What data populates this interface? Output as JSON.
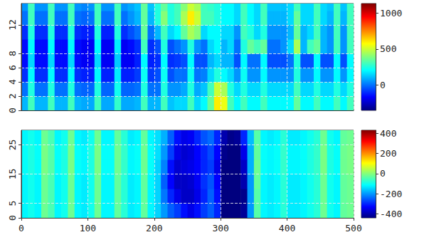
{
  "chart_data": [
    {
      "type": "heatmap",
      "x": [
        5,
        15,
        25,
        35,
        45,
        55,
        65,
        75,
        85,
        95,
        105,
        115,
        125,
        135,
        145,
        155,
        165,
        175,
        185,
        195,
        205,
        215,
        225,
        235,
        245,
        255,
        265,
        275,
        285,
        295,
        305,
        315,
        325,
        335,
        345,
        355,
        365,
        375,
        385,
        395,
        405,
        415,
        425,
        435,
        445,
        455,
        465,
        475,
        485,
        495
      ],
      "y": [
        1,
        3,
        5,
        7,
        9,
        11,
        13,
        15
      ],
      "values": [
        [
          100,
          300,
          100,
          100,
          300,
          100,
          100,
          300,
          100,
          80,
          80,
          300,
          80,
          80,
          280,
          80,
          80,
          100,
          300,
          100,
          100,
          300,
          120,
          150,
          150,
          300,
          150,
          200,
          350,
          600,
          550,
          300,
          200,
          300,
          200,
          200,
          300,
          200,
          200,
          200,
          200,
          350,
          200,
          200,
          300,
          200,
          200,
          300,
          200,
          300
        ],
        [
          0,
          250,
          0,
          0,
          250,
          0,
          0,
          250,
          0,
          -20,
          -20,
          250,
          -20,
          -20,
          230,
          -20,
          -20,
          0,
          250,
          0,
          0,
          250,
          50,
          50,
          80,
          250,
          80,
          120,
          300,
          500,
          450,
          250,
          150,
          250,
          150,
          150,
          250,
          150,
          150,
          150,
          150,
          300,
          150,
          150,
          250,
          150,
          150,
          250,
          150,
          250
        ],
        [
          -100,
          200,
          -100,
          -100,
          200,
          -100,
          -100,
          200,
          -100,
          -120,
          -120,
          200,
          -120,
          -120,
          180,
          -120,
          -120,
          -80,
          220,
          -80,
          -50,
          220,
          -50,
          0,
          0,
          220,
          0,
          20,
          150,
          250,
          200,
          150,
          50,
          220,
          50,
          50,
          200,
          50,
          50,
          50,
          50,
          250,
          50,
          50,
          200,
          50,
          50,
          200,
          50,
          200
        ],
        [
          -150,
          150,
          -150,
          -150,
          150,
          -150,
          -150,
          150,
          -150,
          -180,
          -180,
          150,
          -180,
          -180,
          130,
          -180,
          -180,
          -120,
          200,
          -120,
          -100,
          200,
          -100,
          -80,
          -50,
          200,
          -50,
          -50,
          100,
          150,
          100,
          100,
          -50,
          200,
          0,
          0,
          200,
          -50,
          -50,
          -50,
          0,
          250,
          -50,
          -50,
          200,
          -50,
          -50,
          200,
          -50,
          200
        ],
        [
          -150,
          200,
          -150,
          -150,
          200,
          -150,
          -150,
          200,
          -150,
          -180,
          -180,
          200,
          -180,
          -180,
          180,
          -180,
          -150,
          -100,
          300,
          -100,
          -50,
          250,
          -50,
          0,
          50,
          250,
          50,
          0,
          150,
          200,
          100,
          150,
          0,
          250,
          350,
          300,
          350,
          0,
          0,
          50,
          150,
          450,
          100,
          300,
          350,
          100,
          50,
          300,
          50,
          300
        ],
        [
          -100,
          250,
          -100,
          -100,
          250,
          -100,
          -100,
          250,
          -100,
          -120,
          -120,
          250,
          -120,
          -120,
          250,
          -100,
          -50,
          0,
          350,
          0,
          100,
          300,
          150,
          200,
          350,
          450,
          400,
          150,
          200,
          200,
          150,
          150,
          50,
          300,
          250,
          150,
          250,
          50,
          50,
          50,
          100,
          350,
          100,
          150,
          300,
          100,
          50,
          300,
          50,
          300
        ],
        [
          0,
          300,
          0,
          0,
          300,
          0,
          0,
          300,
          0,
          -20,
          0,
          300,
          0,
          0,
          300,
          0,
          50,
          100,
          350,
          100,
          250,
          400,
          250,
          300,
          450,
          600,
          500,
          300,
          300,
          250,
          200,
          200,
          150,
          300,
          200,
          150,
          300,
          100,
          100,
          100,
          150,
          350,
          150,
          150,
          300,
          150,
          100,
          300,
          100,
          300
        ],
        [
          50,
          300,
          50,
          50,
          300,
          50,
          50,
          300,
          50,
          30,
          50,
          300,
          50,
          50,
          300,
          50,
          80,
          120,
          350,
          120,
          250,
          350,
          250,
          300,
          400,
          500,
          450,
          300,
          280,
          250,
          200,
          200,
          150,
          300,
          200,
          150,
          300,
          120,
          120,
          120,
          150,
          300,
          150,
          150,
          300,
          150,
          120,
          300,
          120,
          300
        ]
      ],
      "xlim": [
        0,
        500
      ],
      "xticks": [
        0,
        100,
        200,
        300,
        400,
        500
      ],
      "ylim": [
        0,
        15
      ],
      "yticks": [
        0,
        2,
        4,
        6,
        8,
        12
      ],
      "tick_labels": "y",
      "grid": true,
      "color_range": [
        -350,
        1130
      ],
      "color_ticks": [
        0,
        500,
        1000
      ]
    },
    {
      "type": "heatmap",
      "x": [
        5,
        15,
        25,
        35,
        45,
        55,
        65,
        75,
        85,
        95,
        105,
        115,
        125,
        135,
        145,
        155,
        165,
        175,
        185,
        195,
        205,
        215,
        225,
        235,
        245,
        255,
        265,
        275,
        285,
        295,
        305,
        315,
        325,
        335,
        345,
        355,
        365,
        375,
        385,
        395,
        405,
        415,
        425,
        435,
        445,
        455,
        465,
        475,
        485,
        495
      ],
      "y": [
        2.5,
        7.5,
        12.5,
        17.5,
        22.5,
        27.5
      ],
      "values": [
        [
          -120,
          -100,
          -120,
          -20,
          -50,
          -120,
          -100,
          -20,
          -120,
          -130,
          -100,
          -20,
          -120,
          -120,
          -30,
          -80,
          -130,
          -120,
          -30,
          -120,
          -150,
          -200,
          -250,
          -280,
          -320,
          -350,
          -320,
          -280,
          -250,
          -300,
          -450,
          -480,
          -470,
          -420,
          -200,
          -40,
          -120,
          -130,
          -120,
          -80,
          -130,
          -130,
          -120,
          -100,
          -80,
          -20,
          -100,
          -120,
          -30,
          -20
        ],
        [
          -120,
          -100,
          -120,
          -20,
          -50,
          -120,
          -100,
          -20,
          -120,
          -130,
          -100,
          -20,
          -120,
          -120,
          -30,
          -80,
          -130,
          -120,
          -30,
          -120,
          -150,
          -230,
          -300,
          -350,
          -380,
          -380,
          -350,
          -300,
          -250,
          -320,
          -460,
          -480,
          -480,
          -430,
          -200,
          -40,
          -120,
          -130,
          -120,
          -80,
          -130,
          -130,
          -120,
          -100,
          -80,
          -20,
          -100,
          -120,
          -30,
          -20
        ],
        [
          -120,
          -100,
          -120,
          -20,
          -50,
          -120,
          -100,
          -20,
          -120,
          -130,
          -100,
          -20,
          -120,
          -120,
          -30,
          -80,
          -130,
          -120,
          -30,
          -120,
          -150,
          -250,
          -330,
          -380,
          -380,
          -370,
          -340,
          -290,
          -260,
          -330,
          -450,
          -480,
          -470,
          -400,
          -200,
          -30,
          -120,
          -130,
          -120,
          -80,
          -130,
          -130,
          -120,
          -100,
          -80,
          -20,
          -100,
          -120,
          -30,
          -20
        ],
        [
          -110,
          -90,
          -110,
          -10,
          -40,
          -110,
          -90,
          -10,
          -110,
          -120,
          -90,
          -10,
          -110,
          -110,
          -20,
          -70,
          -120,
          -110,
          -20,
          -110,
          -150,
          -220,
          -320,
          -370,
          -360,
          -350,
          -330,
          -300,
          -280,
          -350,
          -440,
          -470,
          -460,
          -380,
          -180,
          -20,
          -110,
          -120,
          -110,
          -70,
          -120,
          -120,
          -110,
          -90,
          -70,
          -10,
          -90,
          -110,
          -20,
          -10
        ],
        [
          -110,
          -90,
          -110,
          -10,
          -40,
          -110,
          -90,
          -10,
          -110,
          -120,
          -90,
          -10,
          -110,
          -110,
          -20,
          -70,
          -120,
          -110,
          -20,
          -110,
          -140,
          -200,
          -280,
          -350,
          -370,
          -360,
          -330,
          -300,
          -270,
          -330,
          -430,
          -460,
          -450,
          -350,
          -180,
          -30,
          -110,
          -120,
          -110,
          -70,
          -120,
          -120,
          -110,
          -90,
          -70,
          -10,
          -90,
          -110,
          -20,
          -10
        ],
        [
          -120,
          -100,
          -120,
          -20,
          -50,
          -120,
          -100,
          -20,
          -120,
          -130,
          -100,
          -20,
          -120,
          -120,
          -30,
          -80,
          -130,
          -120,
          -30,
          -120,
          -140,
          -180,
          -250,
          -320,
          -350,
          -340,
          -300,
          -260,
          -240,
          -300,
          -400,
          -430,
          -420,
          -300,
          -170,
          -40,
          -120,
          -130,
          -120,
          -80,
          -130,
          -130,
          -120,
          -100,
          -80,
          -20,
          -100,
          -120,
          -30,
          -20
        ]
      ],
      "xlim": [
        0,
        500
      ],
      "xticks": [
        0,
        100,
        200,
        300,
        400,
        500
      ],
      "ylim": [
        0,
        30
      ],
      "yticks": [
        0,
        5,
        15,
        25
      ],
      "grid": true,
      "color_range": [
        -440,
        430
      ],
      "color_ticks": [
        -400,
        -200,
        0,
        200,
        400
      ]
    }
  ]
}
